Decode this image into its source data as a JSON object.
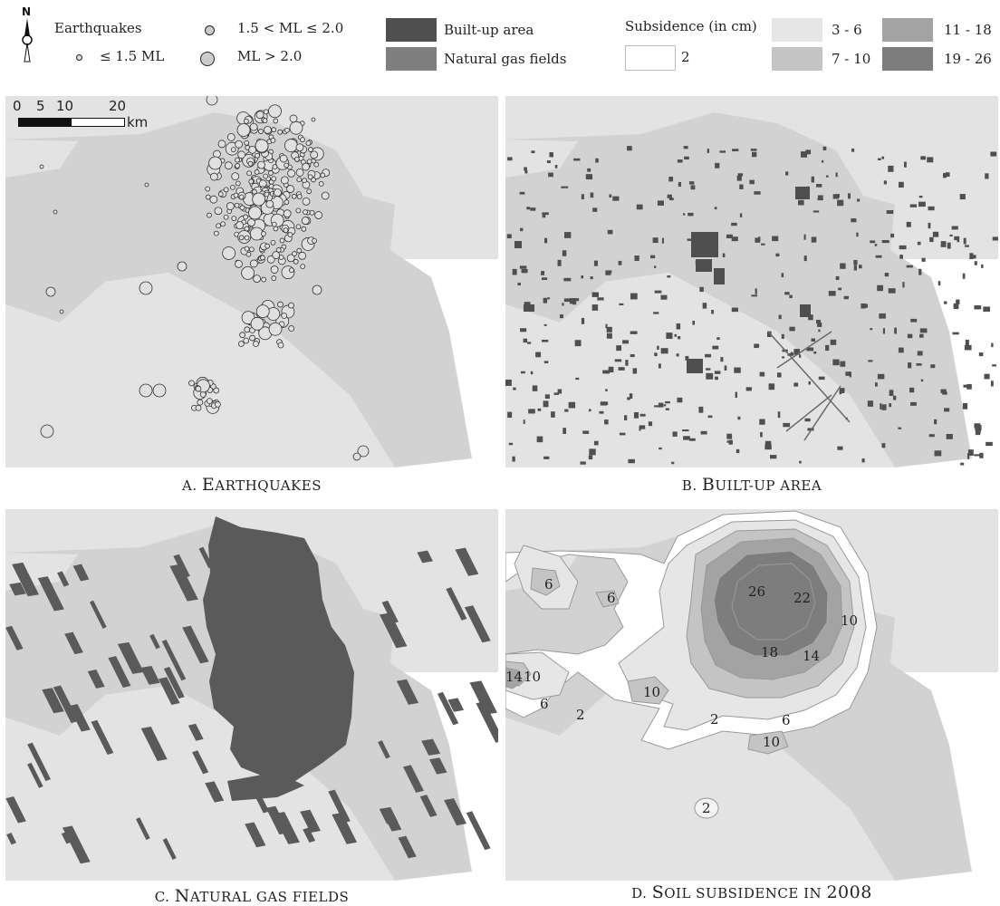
{
  "legend": {
    "earthquakes_title": "Earthquakes",
    "eq_small": "≤ 1.5 ML",
    "eq_mid": "1.5 < ML ≤ 2.0",
    "eq_large": "ML > 2.0",
    "builtup": "Built-up area",
    "gasfields": "Natural gas fields",
    "subsidence_title": "Subsidence (in cm)",
    "subs_classes": [
      "2",
      "3 - 6",
      "7 - 10",
      "11 - 18",
      "19 - 26"
    ],
    "colors": {
      "builtup": "#4f4f4f",
      "gasfields": "#7f7f7f",
      "subs_2": "#ffffff",
      "subs_3_6": "#e6e6e6",
      "subs_7_10": "#c4c4c4",
      "subs_11_18": "#a3a3a3",
      "subs_19_26": "#7d7d7d"
    }
  },
  "scalebar": {
    "ticks": [
      "0",
      "5",
      "10",
      "20"
    ],
    "unit": "km"
  },
  "panels": [
    {
      "letter": "A.",
      "first": "E",
      "rest": "ARTHQUAKES"
    },
    {
      "letter": "B.",
      "first": "B",
      "rest": "UILT-UP AREA"
    },
    {
      "letter": "C.",
      "first": "N",
      "rest": "ATURAL GAS FIELDS"
    },
    {
      "letter": "D.",
      "first": "S",
      "rest": "OIL SUBSIDENCE IN",
      "year": "2008"
    }
  ],
  "subsidence_labels": [
    "6",
    "6",
    "26",
    "22",
    "10",
    "18",
    "14",
    "14",
    "10",
    "6",
    "2",
    "10",
    "2",
    "6",
    "10",
    "2"
  ]
}
